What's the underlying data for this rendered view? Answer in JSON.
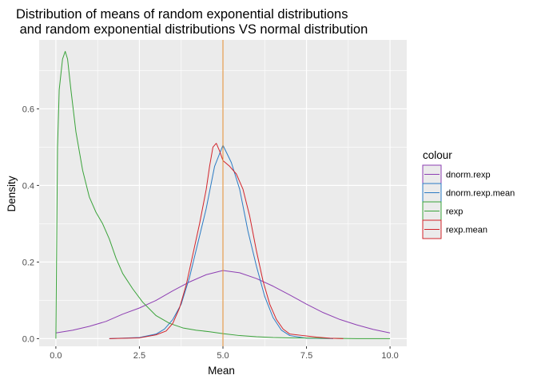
{
  "chart_data": {
    "type": "line",
    "title_line1": "Distribution of means of random exponential distributions",
    "title_line2": " and random exponential distributions VS normal distribution",
    "xlabel": "Mean",
    "ylabel": "Density",
    "xlim": [
      -0.5,
      10.5
    ],
    "ylim": [
      -0.02,
      0.78
    ],
    "x_ticks": [
      0.0,
      2.5,
      5.0,
      7.5,
      10.0
    ],
    "x_tick_labels": [
      "0.0",
      "2.5",
      "5.0",
      "7.5",
      "10.0"
    ],
    "y_ticks": [
      0.0,
      0.2,
      0.4,
      0.6
    ],
    "y_tick_labels": [
      "0.0",
      "0.2",
      "0.4",
      "0.6"
    ],
    "grid": true,
    "legend_title": "colour",
    "legend_position": "right",
    "vline": {
      "x": 5.0,
      "color": "#e08a2b"
    },
    "colors": {
      "panel": "#ebebeb",
      "grid": "#ffffff"
    },
    "series": [
      {
        "name": "dnorm.rexp",
        "color": "#8e3fb3",
        "x": [
          0.0,
          0.5,
          1.0,
          1.5,
          2.0,
          2.5,
          3.0,
          3.5,
          4.0,
          4.5,
          5.0,
          5.5,
          6.0,
          6.5,
          7.0,
          7.5,
          8.0,
          8.5,
          9.0,
          9.5,
          10.0
        ],
        "y": [
          0.015,
          0.022,
          0.032,
          0.045,
          0.064,
          0.08,
          0.1,
          0.125,
          0.148,
          0.167,
          0.178,
          0.172,
          0.157,
          0.137,
          0.114,
          0.09,
          0.068,
          0.05,
          0.036,
          0.024,
          0.015
        ]
      },
      {
        "name": "dnorm.rexp.mean",
        "color": "#2b7bc4",
        "x": [
          1.6,
          2.5,
          3.0,
          3.25,
          3.5,
          3.75,
          4.0,
          4.25,
          4.5,
          4.75,
          5.0,
          5.25,
          5.5,
          5.75,
          6.0,
          6.25,
          6.5,
          6.75,
          7.0,
          7.5,
          8.3
        ],
        "y": [
          0.0,
          0.003,
          0.012,
          0.025,
          0.05,
          0.09,
          0.16,
          0.25,
          0.34,
          0.45,
          0.505,
          0.46,
          0.39,
          0.28,
          0.19,
          0.11,
          0.055,
          0.022,
          0.008,
          0.001,
          0.0
        ]
      },
      {
        "name": "rexp",
        "color": "#3aa33a",
        "x": [
          0.0,
          0.05,
          0.1,
          0.2,
          0.28,
          0.35,
          0.45,
          0.6,
          0.8,
          1.0,
          1.2,
          1.4,
          1.6,
          1.8,
          2.0,
          2.3,
          2.6,
          3.0,
          3.4,
          3.8,
          4.2,
          4.6,
          5.0,
          5.5,
          6.0,
          6.5,
          7.0,
          8.0,
          9.0,
          10.0
        ],
        "y": [
          0.0,
          0.5,
          0.65,
          0.73,
          0.75,
          0.73,
          0.65,
          0.54,
          0.44,
          0.37,
          0.33,
          0.3,
          0.26,
          0.21,
          0.17,
          0.13,
          0.095,
          0.06,
          0.04,
          0.028,
          0.022,
          0.018,
          0.013,
          0.008,
          0.005,
          0.003,
          0.002,
          0.001,
          0.0,
          0.0
        ]
      },
      {
        "name": "rexp.mean",
        "color": "#d2232a",
        "x": [
          1.6,
          2.5,
          3.0,
          3.3,
          3.5,
          3.7,
          3.9,
          4.1,
          4.3,
          4.5,
          4.6,
          4.7,
          4.8,
          4.9,
          5.0,
          5.2,
          5.4,
          5.6,
          5.8,
          6.0,
          6.2,
          6.4,
          6.6,
          6.8,
          7.0,
          7.4,
          7.8,
          8.2,
          8.6
        ],
        "y": [
          0.0,
          0.002,
          0.01,
          0.02,
          0.04,
          0.08,
          0.14,
          0.22,
          0.3,
          0.39,
          0.45,
          0.5,
          0.51,
          0.49,
          0.465,
          0.45,
          0.43,
          0.39,
          0.32,
          0.23,
          0.15,
          0.09,
          0.05,
          0.025,
          0.012,
          0.008,
          0.004,
          0.001,
          0.0
        ]
      }
    ]
  }
}
